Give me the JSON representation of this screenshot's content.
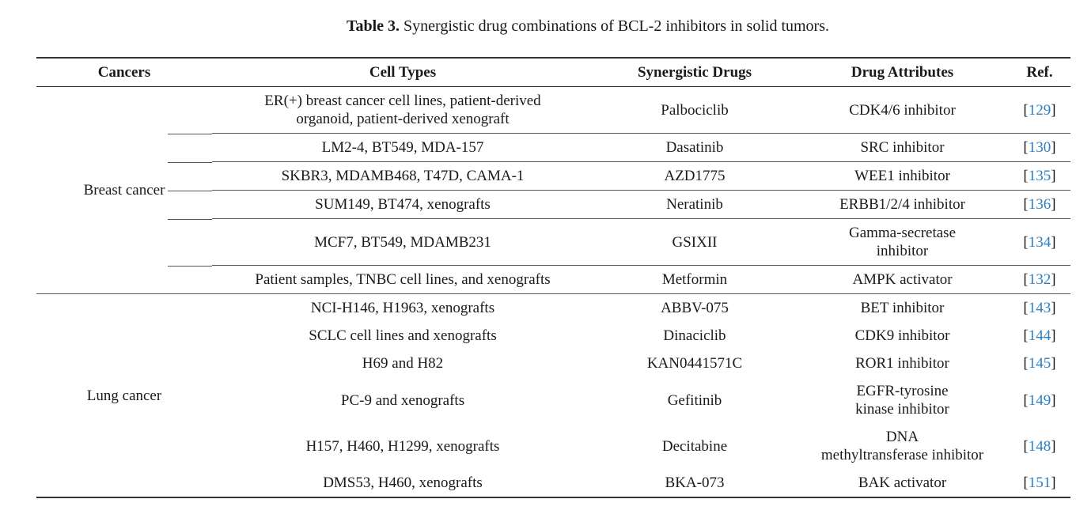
{
  "caption": {
    "label": "Table 3.",
    "text": " Synergistic drug combinations of BCL-2 inhibitors in solid tumors."
  },
  "headers": [
    "Cancers",
    "Cell Types",
    "Synergistic Drugs",
    "Drug Attributes",
    "Ref."
  ],
  "groups": [
    {
      "cancer": "Breast cancer",
      "rows": [
        {
          "cells": "ER(+) breast cancer cell lines, patient-derived organoid, patient-derived xenograft",
          "drug": "Palbociclib",
          "attr": "CDK4/6 inhibitor",
          "ref": "129"
        },
        {
          "cells": "LM2-4, BT549, MDA-157",
          "drug": "Dasatinib",
          "attr": "SRC inhibitor",
          "ref": "130"
        },
        {
          "cells": "SKBR3, MDAMB468, T47D, CAMA-1",
          "drug": "AZD1775",
          "attr": "WEE1 inhibitor",
          "ref": "135"
        },
        {
          "cells": "SUM149, BT474, xenografts",
          "drug": "Neratinib",
          "attr": "ERBB1/2/4 inhibitor",
          "ref": "136"
        },
        {
          "cells": "MCF7, BT549, MDAMB231",
          "drug": "GSIXII",
          "attr": "Gamma-secretase inhibitor",
          "ref": "134"
        },
        {
          "cells": "Patient samples, TNBC cell lines, and xenografts",
          "drug": "Metformin",
          "attr": "AMPK activator",
          "ref": "132"
        }
      ]
    },
    {
      "cancer": "Lung cancer",
      "rows": [
        {
          "cells": "NCI-H146, H1963, xenografts",
          "drug": "ABBV-075",
          "attr": "BET inhibitor",
          "ref": "143"
        },
        {
          "cells": "SCLC cell lines and xenografts",
          "drug": "Dinaciclib",
          "attr": "CDK9 inhibitor",
          "ref": "144"
        },
        {
          "cells": "H69 and H82",
          "drug": "KAN0441571C",
          "attr": "ROR1 inhibitor",
          "ref": "145"
        },
        {
          "cells": "PC-9 and xenografts",
          "drug": "Gefitinib",
          "attr": "EGFR-tyrosine kinase inhibitor",
          "ref": "149"
        },
        {
          "cells": "H157, H460, H1299, xenografts",
          "drug": "Decitabine",
          "attr": "DNA methyltransferase inhibitor",
          "ref": "148"
        },
        {
          "cells": "DMS53, H460, xenografts",
          "drug": "BKA-073",
          "attr": "BAK activator",
          "ref": "151"
        }
      ]
    }
  ],
  "colors": {
    "ref_link": "#2a7fc4"
  }
}
